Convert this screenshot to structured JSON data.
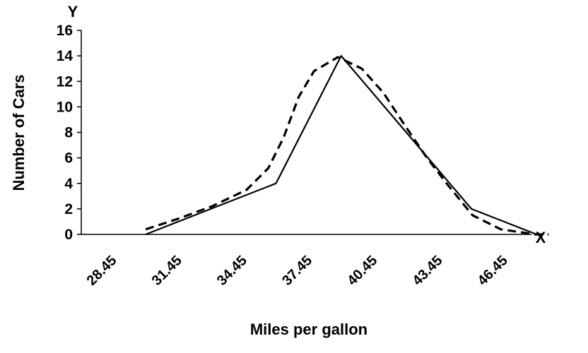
{
  "chart_data": {
    "type": "line",
    "title": "",
    "xlabel": "Miles per gallon",
    "ylabel": "Number of Cars",
    "x_axis_letter": "X",
    "y_axis_letter": "Y",
    "x_ticks": [
      "28.45",
      "31.45",
      "34.45",
      "37.45",
      "40.45",
      "43.45",
      "46.45"
    ],
    "ylim": [
      0,
      16
    ],
    "y_ticks": [
      0,
      2,
      4,
      6,
      8,
      10,
      12,
      14,
      16
    ],
    "legend": "none",
    "grid": false,
    "series": [
      {
        "style": "solid",
        "points": [
          [
            29.95,
            0
          ],
          [
            32.95,
            2
          ],
          [
            35.95,
            4
          ],
          [
            38.95,
            14
          ],
          [
            41.95,
            8
          ],
          [
            44.95,
            2
          ],
          [
            47.95,
            0
          ]
        ]
      },
      {
        "style": "dashed",
        "points": [
          [
            29.95,
            0.4
          ],
          [
            31.4,
            1.2
          ],
          [
            33.0,
            2.2
          ],
          [
            34.6,
            3.5
          ],
          [
            35.6,
            5.2
          ],
          [
            36.3,
            7.6
          ],
          [
            37.0,
            10.8
          ],
          [
            37.7,
            12.8
          ],
          [
            38.8,
            13.9
          ],
          [
            39.9,
            13.0
          ],
          [
            40.9,
            11.1
          ],
          [
            41.9,
            8.5
          ],
          [
            42.9,
            6.0
          ],
          [
            43.9,
            3.8
          ],
          [
            45.0,
            1.5
          ],
          [
            46.3,
            0.4
          ],
          [
            47.9,
            0.0
          ],
          [
            48.5,
            0.0
          ]
        ]
      }
    ]
  }
}
